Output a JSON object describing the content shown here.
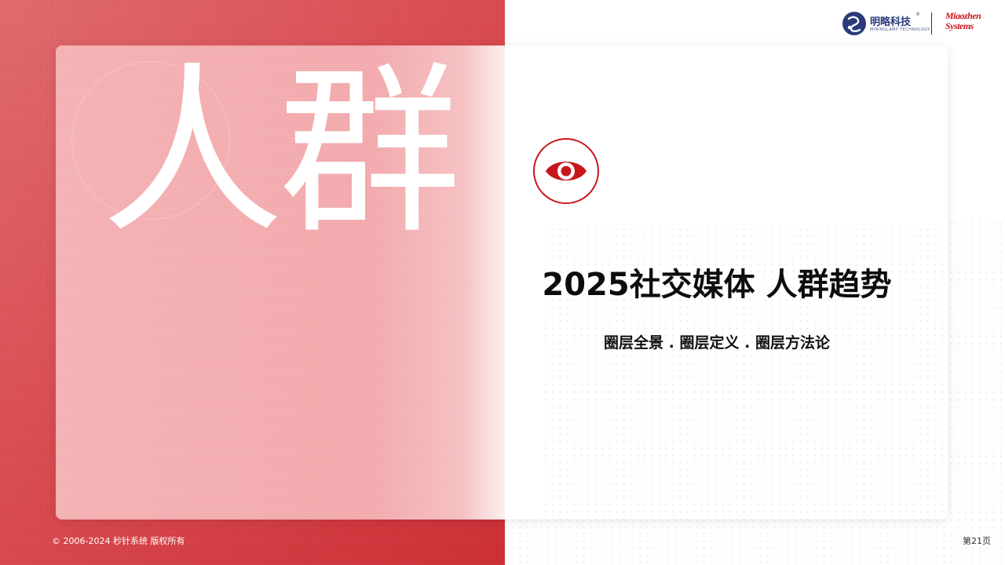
{
  "slide": {
    "big_chars": "人群",
    "title": "2025社交媒体 人群趋势",
    "subtitle": "圈层全景 . 圈层定义 . 圈层方法论",
    "badge_icon": "eye-icon"
  },
  "logos": {
    "mingluo_cn": "明略科技",
    "mingluo_en": "MININGLAMP TECHNOLOGY",
    "mingluo_reg": "®",
    "miaozhen_line1": "Miaozhen",
    "miaozhen_line2": "Systems"
  },
  "footer": {
    "copyright": "© 2006-2024 秒针系统 版权所有",
    "page": "第21页"
  },
  "colors": {
    "accent_red": "#c8161d",
    "left_panel": "#d94b50",
    "card_left": "#f2a8ab"
  }
}
